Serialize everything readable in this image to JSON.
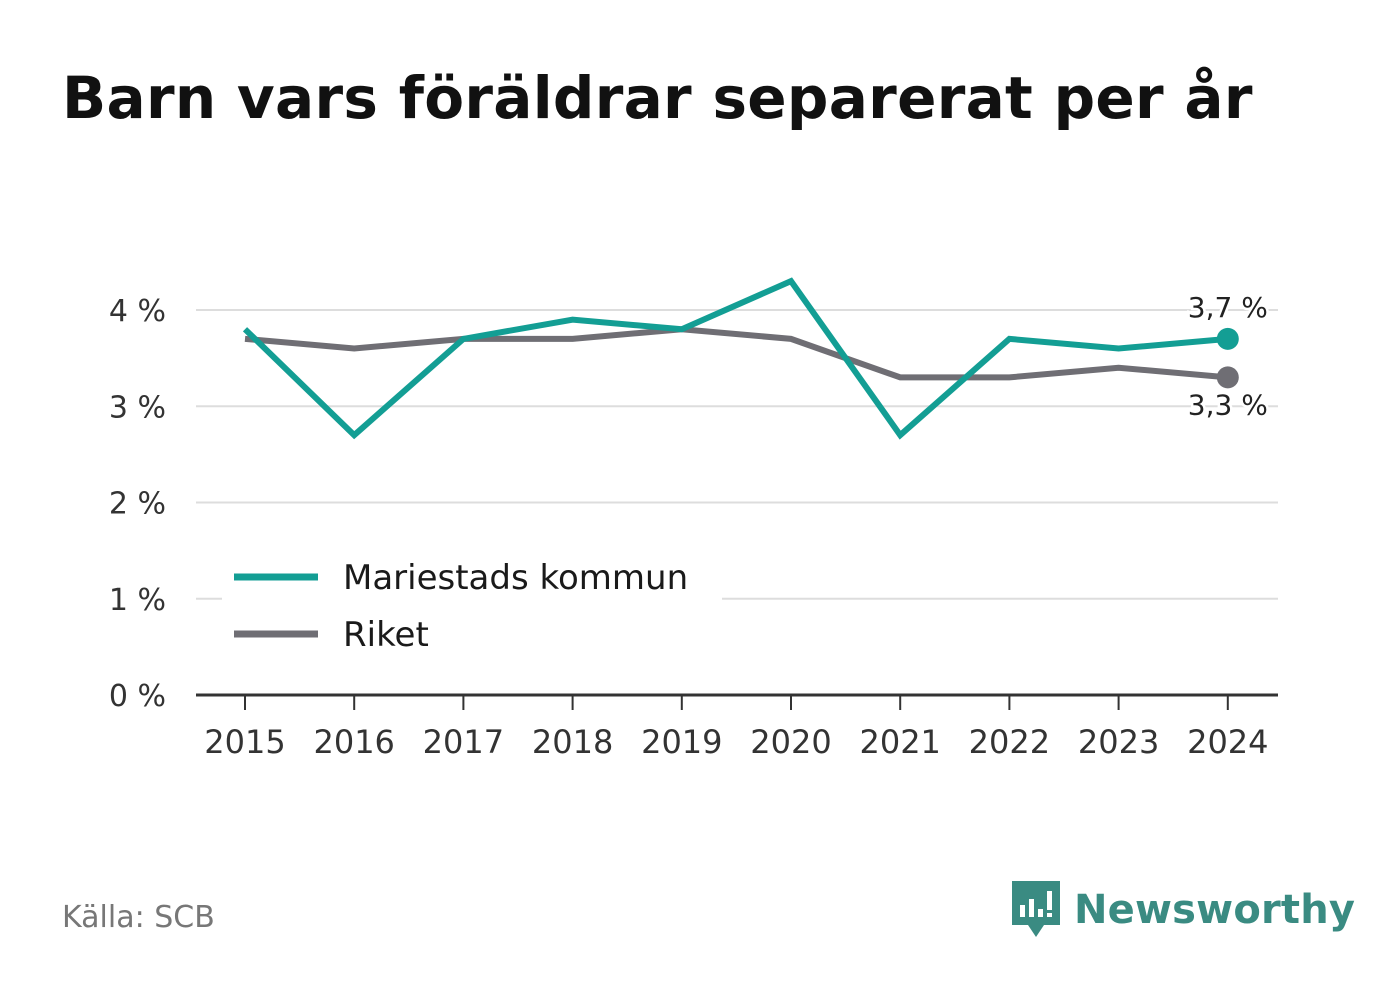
{
  "title": "Barn vars föräldrar separerat per år",
  "source": "Källa: SCB",
  "brand": {
    "name": "Newsworthy",
    "icon": "newsworthy-logo-icon"
  },
  "colors": {
    "municipality": "#139e94",
    "country": "#6f6e74",
    "grid": "#dddddd",
    "axis": "#333333"
  },
  "chart_data": {
    "type": "line",
    "x": [
      "2015",
      "2016",
      "2017",
      "2018",
      "2019",
      "2020",
      "2021",
      "2022",
      "2023",
      "2024"
    ],
    "ylim": [
      0,
      4
    ],
    "yticks": [
      "0 %",
      "1 %",
      "2 %",
      "3 %",
      "4 %"
    ],
    "ytick_values": [
      0,
      1,
      2,
      3,
      4
    ],
    "grid": true,
    "legend": "bottom-left",
    "series": [
      {
        "name": "Mariestads kommun",
        "values": [
          3.8,
          2.7,
          3.7,
          3.9,
          3.8,
          4.3,
          2.7,
          3.7,
          3.6,
          3.7
        ],
        "end_label": "3,7 %"
      },
      {
        "name": "Riket",
        "values": [
          3.7,
          3.6,
          3.7,
          3.7,
          3.8,
          3.7,
          3.3,
          3.3,
          3.4,
          3.3
        ],
        "end_label": "3,3 %"
      }
    ]
  }
}
